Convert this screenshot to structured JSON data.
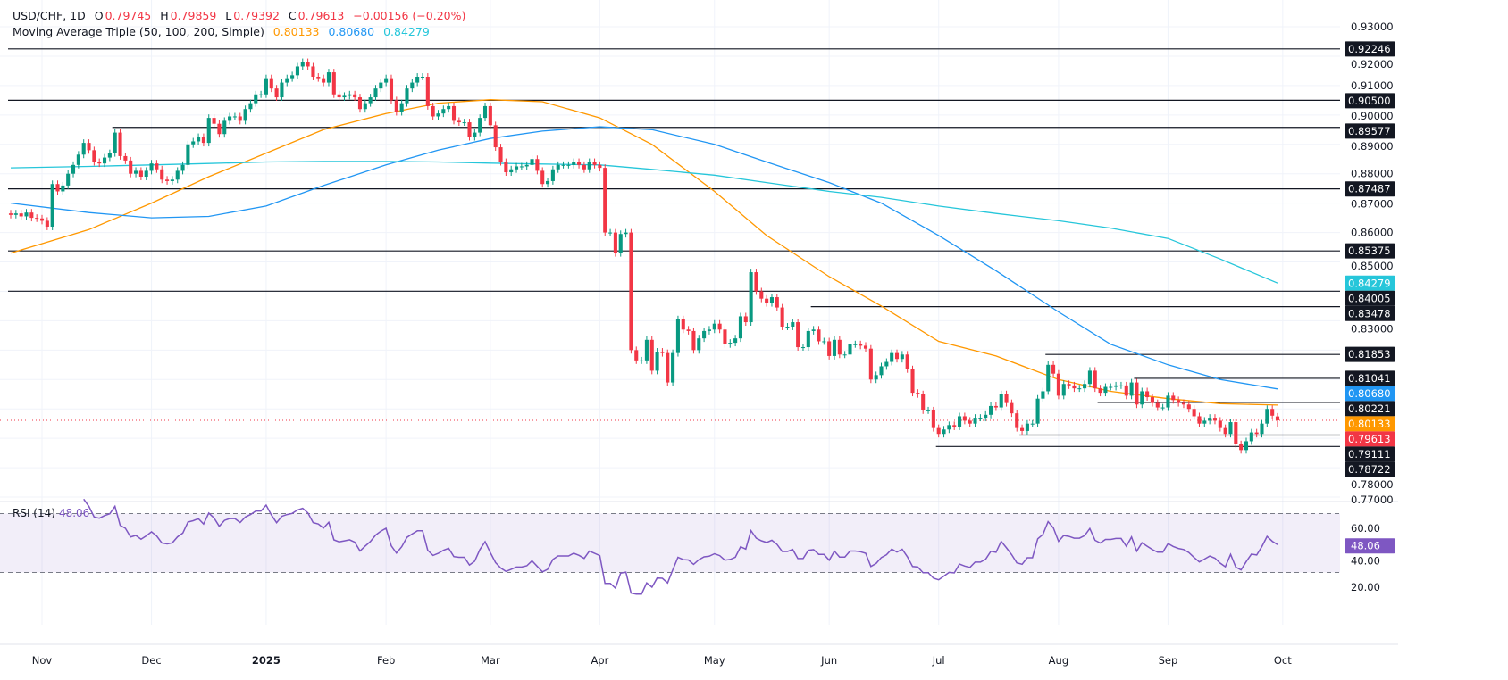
{
  "legend": {
    "symbol": "USD/CHF, 1D",
    "o_label": "O",
    "o_value": "0.79745",
    "h_label": "H",
    "h_value": "0.79859",
    "l_label": "L",
    "l_value": "0.79392",
    "c_label": "C",
    "c_value": "0.79613",
    "change": "−0.00156 (−0.20%)",
    "ma_title": "Moving Average Triple (50, 100, 200, Simple)",
    "ma50_value": "0.80133",
    "ma100_value": "0.80680",
    "ma200_value": "0.84279"
  },
  "rsi": {
    "title": "RSI (14)",
    "value": "48.06",
    "levels": [
      70,
      50,
      30
    ],
    "ticks": [
      "60.00",
      "40.00",
      "20.00"
    ],
    "tick_values": [
      60,
      40,
      20
    ],
    "color": "#7e57c2"
  },
  "colors": {
    "up": "#089981",
    "down": "#f23645",
    "ma50": "#ff9800",
    "ma100": "#2196f3",
    "ma200": "#26c6da",
    "level_box": "#131722"
  },
  "chart_data": {
    "type": "candlestick",
    "title": "USD/CHF, 1D",
    "x_tick_labels": [
      "Nov",
      "Dec",
      "2025",
      "Feb",
      "Mar",
      "Apr",
      "May",
      "Jun",
      "Jul",
      "Aug",
      "Sep",
      "Oct"
    ],
    "y_tick_labels": [
      "0.93000",
      "0.92000",
      "0.91000",
      "0.90000",
      "0.89000",
      "0.88000",
      "0.87000",
      "0.86000",
      "0.85000",
      "0.83000",
      "0.78000",
      "0.77000"
    ],
    "y_tick_values": [
      0.93,
      0.92,
      0.91,
      0.9,
      0.89,
      0.88,
      0.87,
      0.86,
      0.85,
      0.83,
      0.78,
      0.77
    ],
    "ylim": [
      0.765,
      0.935
    ],
    "close": [
      0.866,
      0.8665,
      0.8655,
      0.8668,
      0.865,
      0.8648,
      0.864,
      0.862,
      0.8765,
      0.874,
      0.876,
      0.88,
      0.883,
      0.8865,
      0.8905,
      0.888,
      0.884,
      0.8835,
      0.8855,
      0.887,
      0.894,
      0.886,
      0.8845,
      0.88,
      0.881,
      0.879,
      0.881,
      0.8835,
      0.8815,
      0.878,
      0.8775,
      0.878,
      0.881,
      0.883,
      0.89,
      0.891,
      0.8925,
      0.8905,
      0.899,
      0.897,
      0.8935,
      0.898,
      0.8995,
      0.8995,
      0.898,
      0.902,
      0.904,
      0.907,
      0.907,
      0.9125,
      0.909,
      0.906,
      0.911,
      0.9125,
      0.9135,
      0.9165,
      0.918,
      0.9165,
      0.913,
      0.9125,
      0.911,
      0.9145,
      0.907,
      0.906,
      0.9065,
      0.907,
      0.906,
      0.902,
      0.904,
      0.906,
      0.909,
      0.911,
      0.9125,
      0.905,
      0.901,
      0.904,
      0.909,
      0.911,
      0.913,
      0.913,
      0.903,
      0.8995,
      0.9005,
      0.902,
      0.903,
      0.898,
      0.8975,
      0.8975,
      0.8925,
      0.894,
      0.899,
      0.903,
      0.8965,
      0.889,
      0.884,
      0.8805,
      0.8815,
      0.8825,
      0.8825,
      0.883,
      0.885,
      0.881,
      0.8765,
      0.8775,
      0.8815,
      0.883,
      0.883,
      0.883,
      0.884,
      0.883,
      0.8815,
      0.884,
      0.883,
      0.882,
      0.86,
      0.86,
      0.853,
      0.8595,
      0.86,
      0.82,
      0.8165,
      0.8165,
      0.8235,
      0.813,
      0.8195,
      0.819,
      0.809,
      0.819,
      0.8305,
      0.827,
      0.8265,
      0.82,
      0.824,
      0.8265,
      0.827,
      0.829,
      0.827,
      0.822,
      0.8225,
      0.824,
      0.8315,
      0.8295,
      0.8465,
      0.84,
      0.8375,
      0.836,
      0.838,
      0.8345,
      0.828,
      0.828,
      0.8295,
      0.821,
      0.821,
      0.8265,
      0.827,
      0.823,
      0.823,
      0.818,
      0.8235,
      0.8185,
      0.8185,
      0.822,
      0.822,
      0.8215,
      0.8205,
      0.81,
      0.8115,
      0.8145,
      0.816,
      0.819,
      0.817,
      0.8185,
      0.8135,
      0.8055,
      0.805,
      0.7995,
      0.7995,
      0.7935,
      0.7915,
      0.793,
      0.7945,
      0.794,
      0.7975,
      0.796,
      0.795,
      0.797,
      0.797,
      0.798,
      0.801,
      0.8005,
      0.805,
      0.802,
      0.7985,
      0.7935,
      0.7925,
      0.795,
      0.795,
      0.8035,
      0.806,
      0.815,
      0.812,
      0.8045,
      0.8085,
      0.808,
      0.807,
      0.807,
      0.8085,
      0.813,
      0.807,
      0.8055,
      0.8075,
      0.8075,
      0.808,
      0.808,
      0.8045,
      0.809,
      0.8015,
      0.806,
      0.804,
      0.802,
      0.8005,
      0.8005,
      0.8045,
      0.803,
      0.802,
      0.8015,
      0.8,
      0.7975,
      0.795,
      0.796,
      0.797,
      0.796,
      0.7935,
      0.7915,
      0.7955,
      0.788,
      0.786,
      0.789,
      0.792,
      0.7915,
      0.795,
      0.8,
      0.7977,
      0.7961
    ],
    "last_candle": {
      "open": 0.79745,
      "high": 0.79859,
      "low": 0.79392,
      "close": 0.79613
    },
    "moving_averages": [
      {
        "name": "MA 50",
        "color": "#ff9800",
        "values": [
          0.853,
          0.861,
          0.87,
          0.879,
          0.887,
          0.895,
          0.9005,
          0.904,
          0.9052,
          0.9045,
          0.899,
          0.89,
          0.874,
          0.859,
          0.845,
          0.835,
          0.823,
          0.818,
          0.81,
          0.806,
          0.8035,
          0.8018,
          0.8013
        ]
      },
      {
        "name": "MA 100",
        "color": "#2196f3",
        "values": [
          0.87,
          0.8668,
          0.865,
          0.8655,
          0.869,
          0.876,
          0.883,
          0.888,
          0.892,
          0.8945,
          0.896,
          0.895,
          0.89,
          0.884,
          0.877,
          0.87,
          0.859,
          0.847,
          0.833,
          0.822,
          0.815,
          0.81,
          0.8068
        ]
      },
      {
        "name": "MA 200",
        "color": "#26c6da",
        "values": [
          0.882,
          0.8825,
          0.883,
          0.8835,
          0.884,
          0.8842,
          0.8842,
          0.884,
          0.8836,
          0.8833,
          0.883,
          0.8815,
          0.8795,
          0.877,
          0.874,
          0.872,
          0.869,
          0.8665,
          0.864,
          0.8615,
          0.858,
          0.851,
          0.8428
        ]
      }
    ],
    "horizontal_levels": [
      {
        "value": 0.92246,
        "label": "0.92246"
      },
      {
        "value": 0.905,
        "label": "0.90500"
      },
      {
        "value": 0.89577,
        "label": "0.89577"
      },
      {
        "value": 0.87487,
        "label": "0.87487"
      },
      {
        "value": 0.85375,
        "label": "0.85375"
      },
      {
        "value": 0.84005,
        "label": "0.84005"
      },
      {
        "value": 0.83478,
        "label": "0.83478"
      },
      {
        "value": 0.81853,
        "label": "0.81853"
      },
      {
        "value": 0.81041,
        "label": "0.81041"
      },
      {
        "value": 0.80221,
        "label": "0.80221"
      },
      {
        "value": 0.79111,
        "label": "0.79111"
      },
      {
        "value": 0.78722,
        "label": "0.78722"
      }
    ],
    "price_labels": [
      {
        "value": 0.84279,
        "label": "0.84279",
        "color": "#26c6da"
      },
      {
        "value": 0.8068,
        "label": "0.80680",
        "color": "#2196f3"
      },
      {
        "value": 0.80133,
        "label": "0.80133",
        "color": "#ff9800"
      },
      {
        "value": 0.79613,
        "label": "0.79613",
        "color": "#f23645"
      }
    ]
  }
}
